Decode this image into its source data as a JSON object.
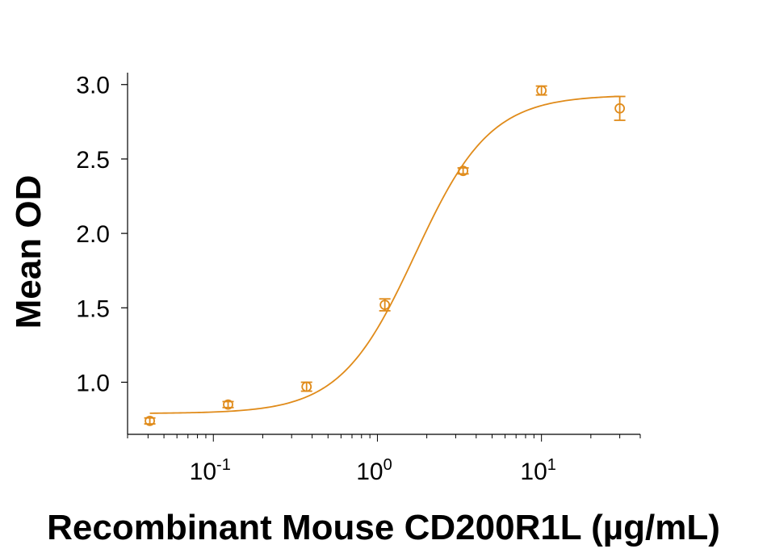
{
  "chart_data": {
    "type": "scatter",
    "xlabel": "Recombinant Mouse CD200R1L (µg/mL)",
    "ylabel": "Mean OD",
    "x_scale": "log",
    "xlim": [
      0.03,
      40
    ],
    "ylim": [
      0.65,
      3.08
    ],
    "y_ticks": [
      {
        "value": 1.0,
        "label": "1.0"
      },
      {
        "value": 1.5,
        "label": "1.5"
      },
      {
        "value": 2.0,
        "label": "2.0"
      },
      {
        "value": 2.5,
        "label": "2.5"
      },
      {
        "value": 3.0,
        "label": "3.0"
      }
    ],
    "x_ticks": [
      {
        "value": 0.1,
        "base": "10",
        "exp": "-1"
      },
      {
        "value": 1,
        "base": "10",
        "exp": "0"
      },
      {
        "value": 10,
        "base": "10",
        "exp": "1"
      }
    ],
    "grid": false,
    "color": "#E08B1A",
    "points": [
      {
        "x": 0.041,
        "y": 0.74,
        "err": 0.02
      },
      {
        "x": 0.123,
        "y": 0.85,
        "err": 0.02
      },
      {
        "x": 0.37,
        "y": 0.97,
        "err": 0.03
      },
      {
        "x": 1.11,
        "y": 1.52,
        "err": 0.04
      },
      {
        "x": 3.33,
        "y": 2.42,
        "err": 0.02
      },
      {
        "x": 10.0,
        "y": 2.96,
        "err": 0.03
      },
      {
        "x": 30.0,
        "y": 2.84,
        "err": 0.08
      }
    ],
    "fit": {
      "model": "4PL",
      "bottom": 0.79,
      "top": 2.93,
      "ec50": 1.7,
      "hill": 1.9
    }
  }
}
